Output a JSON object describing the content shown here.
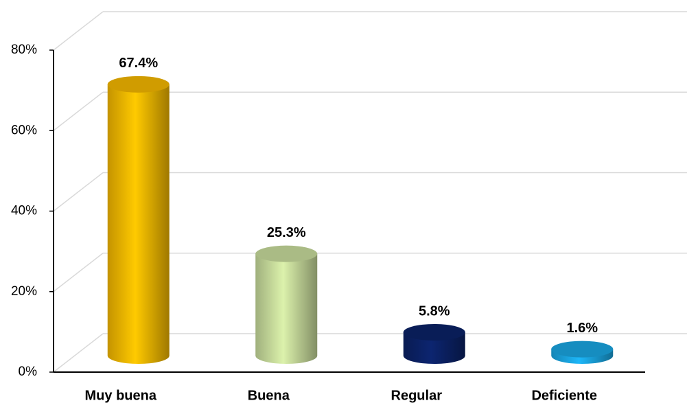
{
  "chart_data": {
    "type": "bar",
    "categories": [
      "Muy buena",
      "Buena",
      "Regular",
      "Deficiente"
    ],
    "values": [
      67.4,
      25.3,
      5.8,
      1.6
    ],
    "value_labels": [
      "67.4%",
      "25.3%",
      "5.8%",
      "1.6%"
    ],
    "colors": [
      "#f5b800",
      "#c8dc9c",
      "#0b2266",
      "#1aa6e2"
    ],
    "ylim": [
      0,
      80
    ],
    "yticks": [
      {
        "value": 0,
        "label": "0%"
      },
      {
        "value": 20,
        "label": "20%"
      },
      {
        "value": 40,
        "label": "40%"
      },
      {
        "value": 60,
        "label": "60%"
      },
      {
        "value": 80,
        "label": "80%"
      }
    ],
    "grid": true
  }
}
